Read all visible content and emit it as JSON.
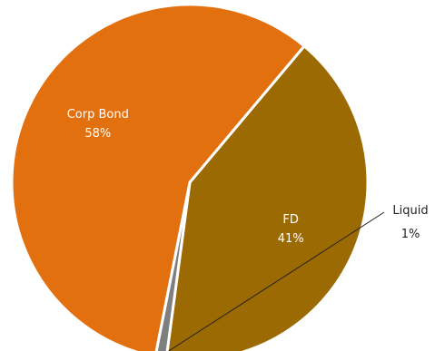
{
  "chart_data": {
    "type": "pie",
    "slices": [
      {
        "name": "FD",
        "value": 41,
        "label": "41%",
        "color": "#9C6A02"
      },
      {
        "name": "Liquid",
        "value": 1,
        "label": "1%",
        "color": "#7F7F7F"
      },
      {
        "name": "Corp Bond",
        "value": 58,
        "label": "58%",
        "color": "#E2700F"
      }
    ],
    "start_slice": "FD",
    "direction": "clockwise",
    "slice_border_color": "#ffffff",
    "legend": "none",
    "label_text_color_inside": "#ffffff",
    "label_text_color_outside": "#222222"
  }
}
